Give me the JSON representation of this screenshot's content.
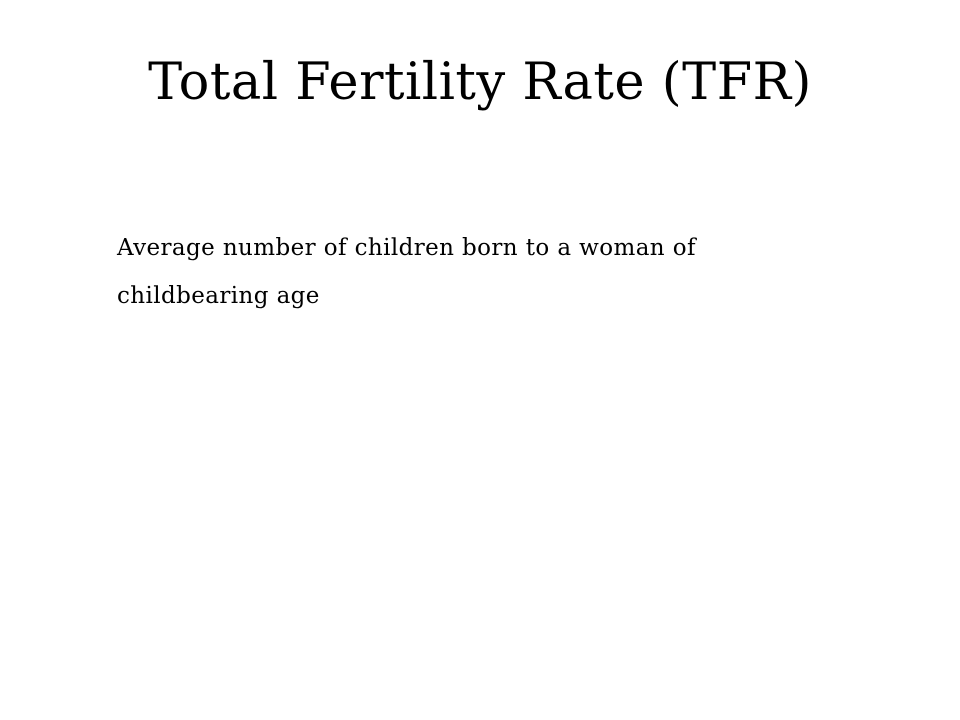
{
  "slide": {
    "title": "Total Fertility Rate (TFR)",
    "body_lines": [
      "Average number of children born to a woman of",
      "childbearing age"
    ]
  }
}
